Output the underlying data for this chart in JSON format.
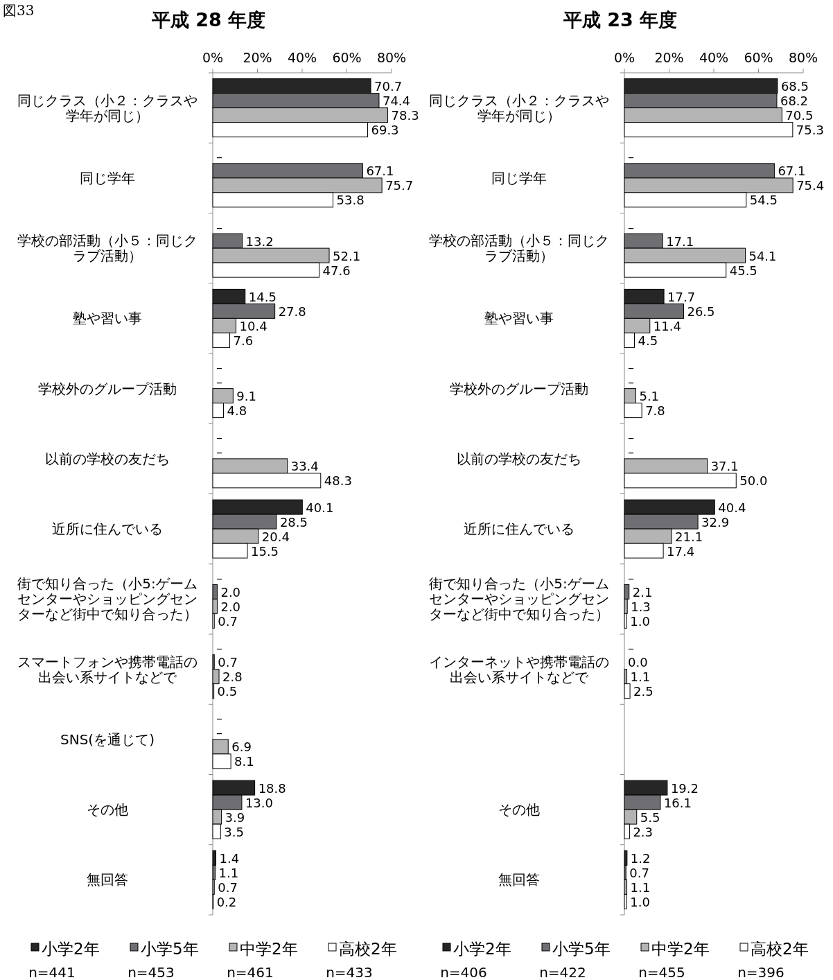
{
  "chart_data": [
    {
      "type": "other",
      "title": "図33"
    },
    {
      "type": "bar",
      "orientation": "horizontal",
      "title": "平成 28 年度",
      "legend": "bottom",
      "categories": [
        "同じクラス（小２：クラスや学年が同じ）",
        "同じ学年",
        "学校の部活動（小５：同じクラブ活動）",
        "塾や習い事",
        "学校外のグループ活動",
        "以前の学校の友だち",
        "近所に住んでいる",
        "街で知り合った（小5:ゲームセンターやショッピングセンターなど街中で知り合った）",
        "スマートフォンや携帯電話の出会い系サイトなどで",
        "SNS(を通じて)",
        "その他",
        "無回答"
      ],
      "xlim": [
        0,
        80
      ],
      "xticks": [
        {
          "value": 0,
          "label": "0%"
        },
        {
          "value": 20,
          "label": "20%"
        },
        {
          "value": 40,
          "label": "40%"
        },
        {
          "value": 60,
          "label": "60%"
        },
        {
          "value": 80,
          "label": "80%"
        }
      ],
      "series": [
        {
          "name": "小学2年",
          "color": "#262626",
          "values": [
            70.7,
            null,
            null,
            14.5,
            null,
            null,
            40.1,
            null,
            null,
            null,
            18.8,
            1.4
          ],
          "value_labels": [
            "70.7",
            "–",
            "–",
            "14.5",
            "–",
            "–",
            "40.1",
            "–",
            "–",
            "–",
            "18.8",
            "1.4"
          ]
        },
        {
          "name": "小学5年",
          "color": "#6e6e73",
          "values": [
            74.4,
            67.1,
            13.2,
            27.8,
            null,
            null,
            28.5,
            2.0,
            0.7,
            null,
            13.0,
            1.1
          ],
          "value_labels": [
            "74.4",
            "67.1",
            "13.2",
            "27.8",
            "–",
            "–",
            "28.5",
            "2.0",
            "0.7",
            "–",
            "13.0",
            "1.1"
          ]
        },
        {
          "name": "中学2年",
          "color": "#b4b4b4",
          "values": [
            78.3,
            75.7,
            52.1,
            10.4,
            9.1,
            33.4,
            20.4,
            2.0,
            2.8,
            6.9,
            3.9,
            0.7
          ],
          "value_labels": [
            "78.3",
            "75.7",
            "52.1",
            "10.4",
            "9.1",
            "33.4",
            "20.4",
            "2.0",
            "2.8",
            "6.9",
            "3.9",
            "0.7"
          ]
        },
        {
          "name": "高校2年",
          "color": "#ffffff",
          "values": [
            69.3,
            53.8,
            47.6,
            7.6,
            4.8,
            48.3,
            15.5,
            0.7,
            0.5,
            8.1,
            3.5,
            0.2
          ],
          "value_labels": [
            "69.3",
            "53.8",
            "47.6",
            "7.6",
            "4.8",
            "48.3",
            "15.5",
            "0.7",
            "0.5",
            "8.1",
            "3.5",
            "0.2"
          ]
        }
      ],
      "annotations": [
        "n=441",
        "n=453",
        "n=461",
        "n=433"
      ]
    },
    {
      "type": "bar",
      "orientation": "horizontal",
      "title": "平成 23 年度",
      "legend": "bottom",
      "categories": [
        "同じクラス（小２：クラスや学年が同じ）",
        "同じ学年",
        "学校の部活動（小５：同じクラブ活動）",
        "塾や習い事",
        "学校外のグループ活動",
        "以前の学校の友だち",
        "近所に住んでいる",
        "街で知り合った（小5:ゲームセンターやショッピングセンターなど街中で知り合った）",
        "インターネットや携帯電話の出会い系サイトなどで",
        null,
        "その他",
        "無回答"
      ],
      "xlim": [
        0,
        80
      ],
      "xticks": [
        {
          "value": 0,
          "label": "0%"
        },
        {
          "value": 20,
          "label": "20%"
        },
        {
          "value": 40,
          "label": "40%"
        },
        {
          "value": 60,
          "label": "60%"
        },
        {
          "value": 80,
          "label": "80%"
        }
      ],
      "series": [
        {
          "name": "小学2年",
          "color": "#262626",
          "values": [
            68.5,
            null,
            null,
            17.7,
            null,
            null,
            40.4,
            null,
            null,
            null,
            19.2,
            1.2
          ],
          "value_labels": [
            "68.5",
            "–",
            "–",
            "17.7",
            "–",
            "–",
            "40.4",
            "–",
            "–",
            null,
            "19.2",
            "1.2"
          ]
        },
        {
          "name": "小学5年",
          "color": "#6e6e73",
          "values": [
            68.2,
            67.1,
            17.1,
            26.5,
            null,
            null,
            32.9,
            2.1,
            0.0,
            null,
            16.1,
            0.7
          ],
          "value_labels": [
            "68.2",
            "67.1",
            "17.1",
            "26.5",
            "–",
            "–",
            "32.9",
            "2.1",
            "0.0",
            null,
            "16.1",
            "0.7"
          ]
        },
        {
          "name": "中学2年",
          "color": "#b4b4b4",
          "values": [
            70.5,
            75.4,
            54.1,
            11.4,
            5.1,
            37.1,
            21.1,
            1.3,
            1.1,
            null,
            5.5,
            1.1
          ],
          "value_labels": [
            "70.5",
            "75.4",
            "54.1",
            "11.4",
            "5.1",
            "37.1",
            "21.1",
            "1.3",
            "1.1",
            null,
            "5.5",
            "1.1"
          ]
        },
        {
          "name": "高校2年",
          "color": "#ffffff",
          "values": [
            75.3,
            54.5,
            45.5,
            4.5,
            7.8,
            50.0,
            17.4,
            1.0,
            2.5,
            null,
            2.3,
            1.0
          ],
          "value_labels": [
            "75.3",
            "54.5",
            "45.5",
            "4.5",
            "7.8",
            "50.0",
            "17.4",
            "1.0",
            "2.5",
            null,
            "2.3",
            "1.0"
          ]
        }
      ],
      "annotations": [
        "n=406",
        "n=422",
        "n=455",
        "n=396"
      ]
    }
  ]
}
